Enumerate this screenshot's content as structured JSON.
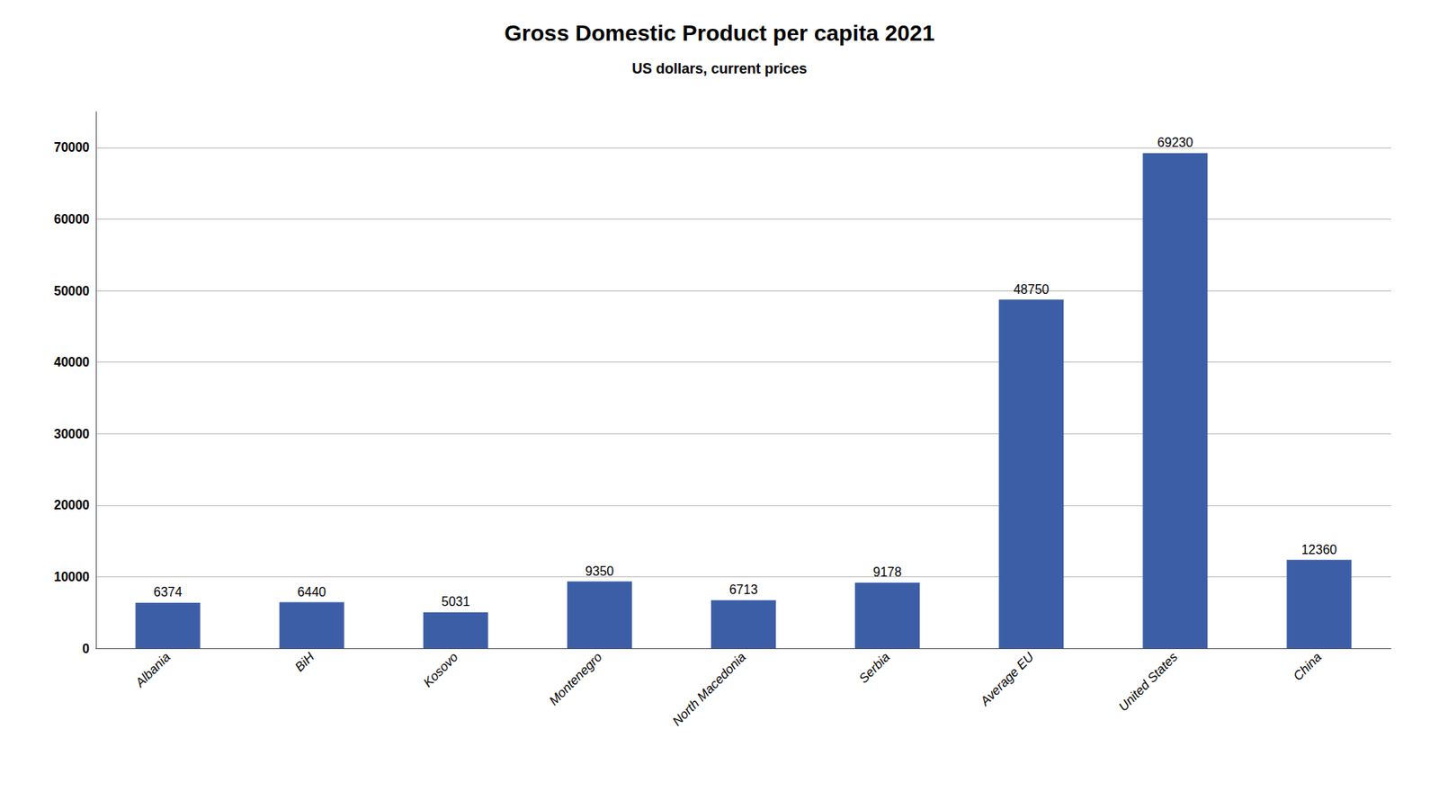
{
  "chart_data": {
    "type": "bar",
    "title": "Gross Domestic Product per capita 2021",
    "subtitle": "US dollars, current prices",
    "categories": [
      "Albania",
      "BiH",
      "Kosovo",
      "Montenegro",
      "North Macedonia",
      "Serbia",
      "Average EU",
      "United States",
      "China"
    ],
    "values": [
      6374,
      6440,
      5031,
      9350,
      6713,
      9178,
      48750,
      69230,
      12360
    ],
    "color": "#3B5EA6",
    "ylim": [
      0,
      75000
    ],
    "yticks": [
      0,
      10000,
      20000,
      30000,
      40000,
      50000,
      60000,
      70000
    ],
    "grid": true,
    "data_labels": true
  }
}
